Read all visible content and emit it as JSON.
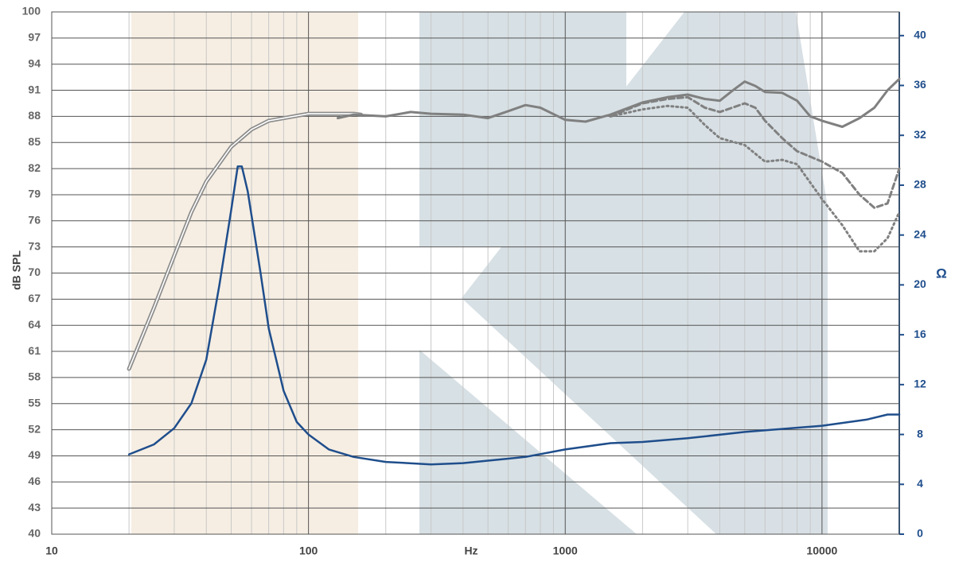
{
  "chart_data": {
    "type": "line",
    "xlabel": "Hz",
    "ylabel": "dB SPL",
    "y2label": "Ω",
    "xscale": "log",
    "xlim": [
      10,
      20000
    ],
    "xticks": [
      10,
      100,
      1000,
      10000
    ],
    "ylim": [
      40,
      100
    ],
    "yticks": [
      40,
      43,
      46,
      49,
      52,
      55,
      58,
      61,
      64,
      67,
      70,
      73,
      76,
      79,
      82,
      85,
      88,
      91,
      94,
      97,
      100
    ],
    "y2lim": [
      0,
      41.9
    ],
    "y2ticks": [
      0,
      4,
      8,
      12,
      16,
      20,
      24,
      28,
      32,
      36,
      40
    ],
    "grid": true,
    "minor_grid": true,
    "series": [
      {
        "color": "#8c8c8c",
        "style": "double",
        "x": [
          20,
          25,
          30,
          35,
          40,
          50,
          60,
          70,
          100,
          150,
          160
        ],
        "values": [
          59,
          66,
          72,
          77,
          80.5,
          84.5,
          86.5,
          87.5,
          88.3,
          88.3,
          88.2
        ]
      },
      {
        "color": "#808080",
        "style": "solid",
        "x": [
          130,
          150,
          200,
          250,
          300,
          400,
          500,
          600,
          700,
          800,
          1000,
          1200,
          1500,
          2000,
          2500,
          3000,
          3500,
          4000,
          4500,
          5000,
          5500,
          6000,
          7000,
          8000,
          9000,
          10000,
          12000,
          14000,
          16000,
          18000,
          20000
        ],
        "values": [
          87.8,
          88.2,
          88,
          88.5,
          88.3,
          88.2,
          87.8,
          88.6,
          89.3,
          89,
          87.6,
          87.4,
          88.2,
          89.6,
          90.2,
          90.5,
          90,
          89.8,
          91,
          92,
          91.5,
          90.8,
          90.7,
          89.8,
          88,
          87.5,
          86.8,
          87.8,
          89,
          91,
          92.3
        ]
      },
      {
        "color": "#808080",
        "style": "dashed",
        "x": [
          1500,
          2000,
          2500,
          3000,
          3500,
          4000,
          5000,
          5500,
          6000,
          7000,
          8000,
          10000,
          12000,
          14000,
          16000,
          18000,
          20000
        ],
        "values": [
          88,
          89.5,
          90,
          90.2,
          89,
          88.5,
          89.5,
          89,
          87.5,
          85.5,
          84,
          82.8,
          81.5,
          79,
          77.5,
          78,
          82
        ]
      },
      {
        "color": "#808080",
        "style": "dotted",
        "x": [
          1500,
          2000,
          2500,
          3000,
          3500,
          4000,
          5000,
          6000,
          7000,
          8000,
          10000,
          12000,
          14000,
          16000,
          18000,
          20000
        ],
        "values": [
          88,
          88.8,
          89.2,
          89,
          87,
          85.5,
          84.7,
          82.8,
          83,
          82.5,
          78.5,
          75.5,
          72.5,
          72.5,
          74,
          77
        ]
      },
      {
        "color": "#1f4e8c",
        "style": "solid",
        "axis": "y2",
        "x": [
          20,
          25,
          30,
          35,
          40,
          45,
          50,
          53,
          55,
          58,
          65,
          70,
          80,
          90,
          100,
          120,
          150,
          200,
          300,
          400,
          500,
          700,
          1000,
          1500,
          2000,
          3000,
          5000,
          10000,
          15000,
          18000,
          20000
        ],
        "values": [
          6.4,
          7.2,
          8.5,
          10.5,
          14,
          20,
          26,
          29.5,
          29.5,
          27.5,
          21,
          16.5,
          11.5,
          9,
          8,
          6.8,
          6.2,
          5.8,
          5.6,
          5.7,
          5.9,
          6.2,
          6.8,
          7.3,
          7.4,
          7.7,
          8.2,
          8.7,
          9.2,
          9.6,
          9.6
        ]
      }
    ]
  }
}
